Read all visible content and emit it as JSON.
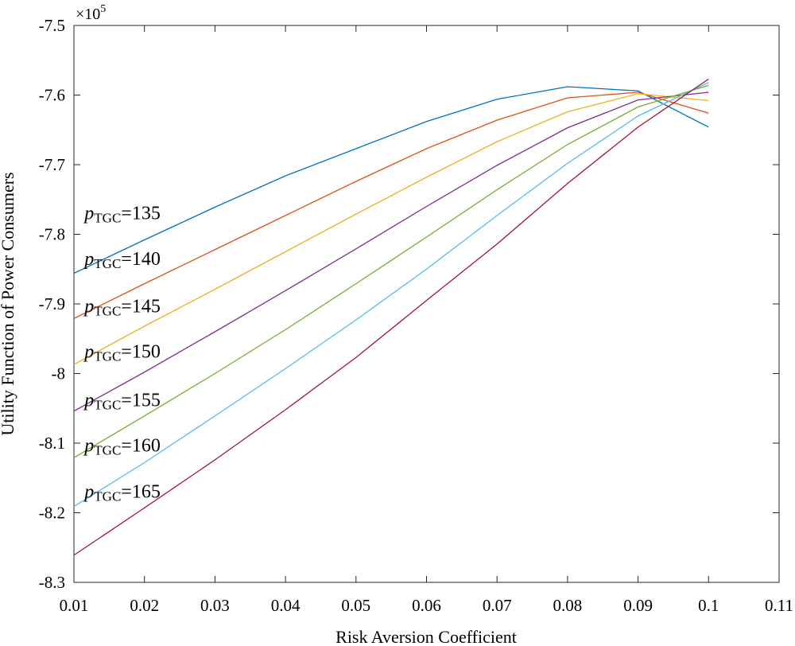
{
  "chart_data": {
    "type": "line",
    "title": "",
    "xlabel": "Risk Aversion Coefficient",
    "ylabel": "Utility Function of Power Consumers",
    "exponent_label": {
      "base": "×10",
      "power": "5"
    },
    "xlim": [
      0.01,
      0.11
    ],
    "ylim": [
      -8.3,
      -7.5
    ],
    "xticks": [
      0.01,
      0.02,
      0.03,
      0.04,
      0.05,
      0.06,
      0.07,
      0.08,
      0.09,
      0.1,
      0.11
    ],
    "xtick_labels": [
      "0.01",
      "0.02",
      "0.03",
      "0.04",
      "0.05",
      "0.06",
      "0.07",
      "0.08",
      "0.09",
      "0.1",
      "0.11"
    ],
    "yticks": [
      -7.5,
      -7.6,
      -7.7,
      -7.8,
      -7.9,
      -8,
      -8.1,
      -8.2,
      -8.3
    ],
    "ytick_labels": [
      "-7.5",
      "-7.6",
      "-7.7",
      "-7.8",
      "-7.9",
      "-8",
      "-8.1",
      "-8.2",
      "-8.3"
    ],
    "x": [
      0.01,
      0.02,
      0.03,
      0.04,
      0.05,
      0.06,
      0.07,
      0.08,
      0.09,
      0.1
    ],
    "series": [
      {
        "name": "p_TGC=135",
        "color": "#0072BD",
        "values": [
          -7.856,
          -7.808,
          -7.761,
          -7.716,
          -7.677,
          -7.638,
          -7.606,
          -7.588,
          -7.594,
          -7.646
        ]
      },
      {
        "name": "p_TGC=140",
        "color": "#D95319",
        "values": [
          -7.921,
          -7.871,
          -7.822,
          -7.773,
          -7.724,
          -7.677,
          -7.636,
          -7.604,
          -7.596,
          -7.626
        ]
      },
      {
        "name": "p_TGC=145",
        "color": "#EDB120",
        "values": [
          -7.987,
          -7.932,
          -7.879,
          -7.825,
          -7.771,
          -7.718,
          -7.667,
          -7.624,
          -7.598,
          -7.608
        ]
      },
      {
        "name": "p_TGC=150",
        "color": "#7E2F8E",
        "values": [
          -8.054,
          -7.998,
          -7.94,
          -7.881,
          -7.821,
          -7.76,
          -7.701,
          -7.647,
          -7.607,
          -7.596
        ]
      },
      {
        "name": "p_TGC=155",
        "color": "#77AC30",
        "values": [
          -8.121,
          -8.061,
          -8.0,
          -7.937,
          -7.871,
          -7.804,
          -7.736,
          -7.671,
          -7.617,
          -7.586
        ]
      },
      {
        "name": "p_TGC=160",
        "color": "#4DBEEE",
        "values": [
          -8.191,
          -8.128,
          -8.061,
          -7.993,
          -7.923,
          -7.85,
          -7.773,
          -7.698,
          -7.63,
          -7.582
        ]
      },
      {
        "name": "p_TGC=165",
        "color": "#A2142F",
        "values": [
          -8.261,
          -8.193,
          -8.124,
          -8.052,
          -7.977,
          -7.895,
          -7.814,
          -7.727,
          -7.646,
          -7.577
        ]
      }
    ],
    "annotations": [
      {
        "symbol": "p",
        "subscript": "TGC",
        "value": "=135",
        "x": 0.0115,
        "y": -7.778
      },
      {
        "symbol": "p",
        "subscript": "TGC",
        "value": "=140",
        "x": 0.0115,
        "y": -7.844
      },
      {
        "symbol": "p",
        "subscript": "TGC",
        "value": "=145",
        "x": 0.0115,
        "y": -7.912
      },
      {
        "symbol": "p",
        "subscript": "TGC",
        "value": "=150",
        "x": 0.0115,
        "y": -7.977
      },
      {
        "symbol": "p",
        "subscript": "TGC",
        "value": "=155",
        "x": 0.0115,
        "y": -8.047
      },
      {
        "symbol": "p",
        "subscript": "TGC",
        "value": "=160",
        "x": 0.0115,
        "y": -8.112
      },
      {
        "symbol": "p",
        "subscript": "TGC",
        "value": "=165",
        "x": 0.0115,
        "y": -8.178
      }
    ],
    "grid": false,
    "legend": "none"
  }
}
